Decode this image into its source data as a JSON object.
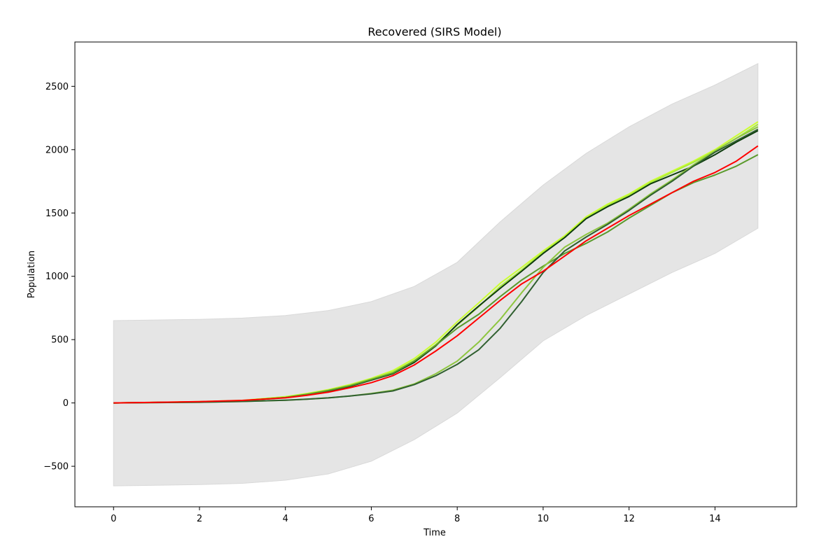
{
  "chart_data": {
    "type": "line",
    "title": "Recovered (SIRS Model)",
    "xlabel": "Time",
    "ylabel": "Population",
    "xlim": [
      -0.9,
      15.9
    ],
    "ylim": [
      -820,
      2850
    ],
    "xticks": [
      0,
      2,
      4,
      6,
      8,
      10,
      12,
      14
    ],
    "yticks": [
      -500,
      0,
      500,
      1000,
      1500,
      2000,
      2500
    ],
    "ytick_labels": [
      "−500",
      "0",
      "500",
      "1000",
      "1500",
      "2000",
      "2500"
    ],
    "grid": false,
    "legend": "none",
    "band": {
      "color": "#e5e5e5",
      "x": [
        0,
        1,
        2,
        3,
        4,
        5,
        6,
        7,
        8,
        9,
        10,
        11,
        12,
        13,
        14,
        15
      ],
      "upper": [
        650,
        655,
        660,
        670,
        690,
        730,
        800,
        920,
        1110,
        1430,
        1720,
        1970,
        2180,
        2360,
        2510,
        2680
      ],
      "lower": [
        -655,
        -650,
        -645,
        -635,
        -610,
        -560,
        -460,
        -290,
        -80,
        200,
        490,
        690,
        860,
        1030,
        1180,
        1380
      ]
    },
    "series": [
      {
        "color": "#ccff33",
        "x": [
          0,
          1,
          2,
          3,
          4,
          4.5,
          5,
          5.5,
          6,
          6.5,
          7,
          7.5,
          8,
          8.5,
          9,
          9.5,
          10,
          10.5,
          11,
          11.5,
          12,
          12.5,
          13,
          13.5,
          14,
          14.5,
          15
        ],
        "values": [
          0,
          5,
          10,
          20,
          50,
          75,
          105,
          145,
          195,
          255,
          350,
          480,
          640,
          790,
          945,
          1070,
          1200,
          1320,
          1470,
          1570,
          1650,
          1750,
          1830,
          1910,
          2000,
          2110,
          2220
        ]
      },
      {
        "color": "#a8e83c",
        "x": [
          0,
          1,
          2,
          3,
          4,
          4.5,
          5,
          5.5,
          6,
          6.5,
          7,
          7.5,
          8,
          8.5,
          9,
          9.5,
          10,
          10.5,
          11,
          11.5,
          12,
          12.5,
          13,
          13.5,
          14,
          14.5,
          15
        ],
        "values": [
          0,
          4,
          9,
          18,
          45,
          70,
          100,
          140,
          190,
          245,
          335,
          460,
          615,
          760,
          920,
          1050,
          1190,
          1310,
          1460,
          1560,
          1640,
          1740,
          1820,
          1900,
          1990,
          2090,
          2200
        ]
      },
      {
        "color": "#0d3b0d",
        "x": [
          0,
          1,
          2,
          3,
          4,
          4.5,
          5,
          5.5,
          6,
          6.5,
          7,
          7.5,
          8,
          8.5,
          9,
          9.5,
          10,
          10.5,
          11,
          11.5,
          12,
          12.5,
          13,
          13.5,
          14,
          14.5,
          15
        ],
        "values": [
          0,
          4,
          9,
          18,
          42,
          65,
          95,
          130,
          180,
          230,
          320,
          450,
          620,
          765,
          905,
          1040,
          1180,
          1305,
          1455,
          1550,
          1630,
          1730,
          1800,
          1870,
          1960,
          2060,
          2150
        ]
      },
      {
        "color": "#5a9a2c",
        "x": [
          0,
          1,
          2,
          3,
          4,
          4.5,
          5,
          5.5,
          6,
          6.5,
          7,
          7.5,
          8,
          8.5,
          9,
          9.5,
          10,
          10.5,
          11,
          11.5,
          12,
          12.5,
          13,
          13.5,
          14,
          14.5,
          15
        ],
        "values": [
          0,
          4,
          9,
          18,
          43,
          68,
          98,
          135,
          185,
          235,
          330,
          455,
          590,
          700,
          840,
          970,
          1080,
          1180,
          1260,
          1350,
          1460,
          1560,
          1660,
          1740,
          1800,
          1870,
          1960
        ]
      },
      {
        "color": "#8dc63f",
        "x": [
          0,
          1,
          2,
          3,
          4,
          4.5,
          5,
          5.5,
          6,
          6.5,
          7,
          7.5,
          8,
          8.5,
          9,
          9.5,
          10,
          10.5,
          11,
          11.5,
          12,
          12.5,
          13,
          13.5,
          14,
          14.5,
          15
        ],
        "values": [
          0,
          3,
          6,
          12,
          22,
          30,
          40,
          55,
          75,
          100,
          150,
          230,
          330,
          480,
          660,
          870,
          1070,
          1230,
          1330,
          1420,
          1530,
          1650,
          1760,
          1880,
          1990,
          2090,
          2180
        ]
      },
      {
        "color": "#2f5f2f",
        "x": [
          0,
          1,
          2,
          3,
          4,
          4.5,
          5,
          5.5,
          6,
          6.5,
          7,
          7.5,
          8,
          8.5,
          9,
          9.5,
          10,
          10.5,
          11,
          11.5,
          12,
          12.5,
          13,
          13.5,
          14,
          14.5,
          15
        ],
        "values": [
          0,
          3,
          6,
          12,
          22,
          30,
          40,
          55,
          72,
          95,
          145,
          215,
          305,
          420,
          590,
          800,
          1030,
          1200,
          1310,
          1410,
          1520,
          1640,
          1750,
          1870,
          1980,
          2070,
          2160
        ]
      },
      {
        "color": "#ff0000",
        "x": [
          0,
          1,
          2,
          3,
          4,
          4.5,
          5,
          5.5,
          6,
          6.5,
          7,
          7.5,
          8,
          8.5,
          9,
          9.5,
          10,
          10.5,
          11,
          11.5,
          12,
          12.5,
          13,
          13.5,
          14,
          14.5,
          15
        ],
        "values": [
          0,
          5,
          10,
          20,
          40,
          60,
          85,
          120,
          160,
          215,
          300,
          410,
          530,
          670,
          810,
          940,
          1040,
          1160,
          1280,
          1380,
          1480,
          1570,
          1660,
          1750,
          1820,
          1910,
          2030
        ]
      }
    ]
  }
}
